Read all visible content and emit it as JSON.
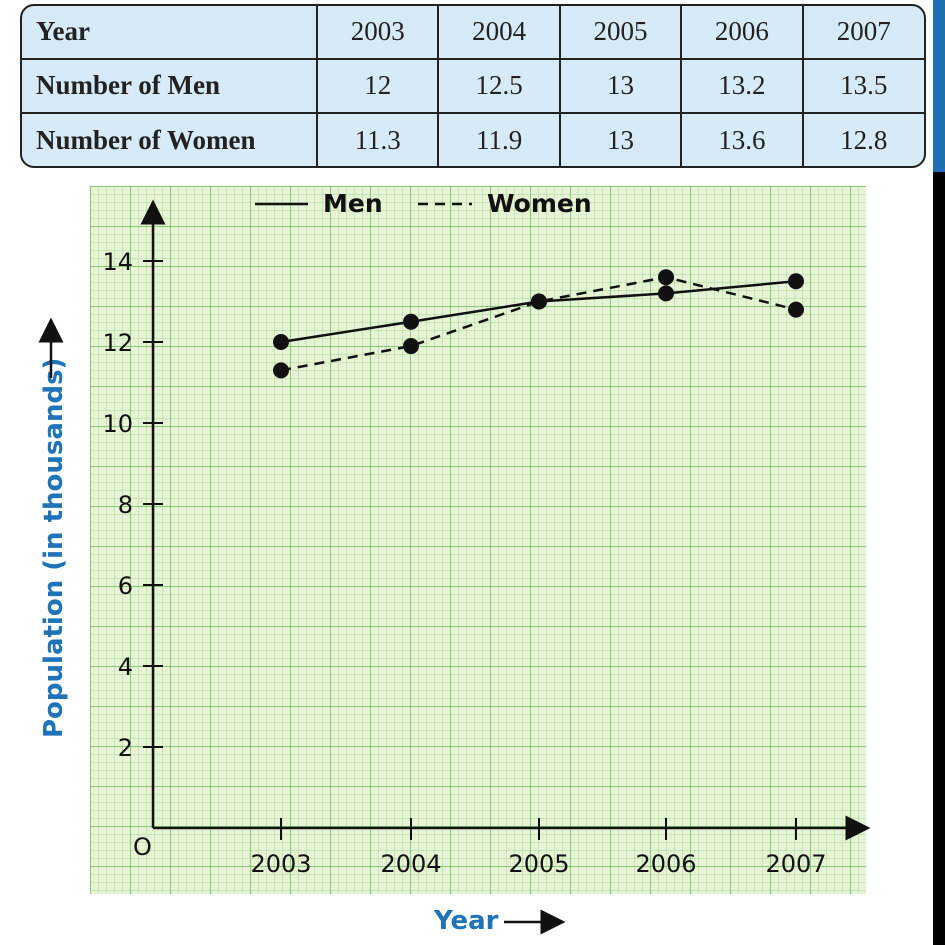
{
  "table": {
    "header_label": "Year",
    "years": [
      "2003",
      "2004",
      "2005",
      "2006",
      "2007"
    ],
    "men_label": "Number of Men",
    "men_values": [
      "12",
      "12.5",
      "13",
      "13.2",
      "13.5"
    ],
    "women_label": "Number of Women",
    "women_values": [
      "11.3",
      "11.9",
      "13",
      "13.6",
      "12.8"
    ]
  },
  "chart_data": {
    "type": "line",
    "title": "",
    "xlabel": "Year",
    "ylabel": "Population (in thousands)",
    "origin_label": "O",
    "categories": [
      "2003",
      "2004",
      "2005",
      "2006",
      "2007"
    ],
    "yticks": [
      2,
      4,
      6,
      8,
      10,
      12,
      14
    ],
    "ylim": [
      0,
      15
    ],
    "series": [
      {
        "name": "Men",
        "style": "solid",
        "values": [
          12,
          12.5,
          13,
          13.2,
          13.5
        ]
      },
      {
        "name": "Women",
        "style": "dashed",
        "values": [
          11.3,
          11.9,
          13,
          13.6,
          12.8
        ]
      }
    ],
    "legend_position": "top",
    "grid": true
  },
  "colors": {
    "axis_title": "#1f73b8",
    "table_bg": "#d6ebf7",
    "paper_bg": "#e6f3d4",
    "edge_blue": "#1f6fb2"
  }
}
